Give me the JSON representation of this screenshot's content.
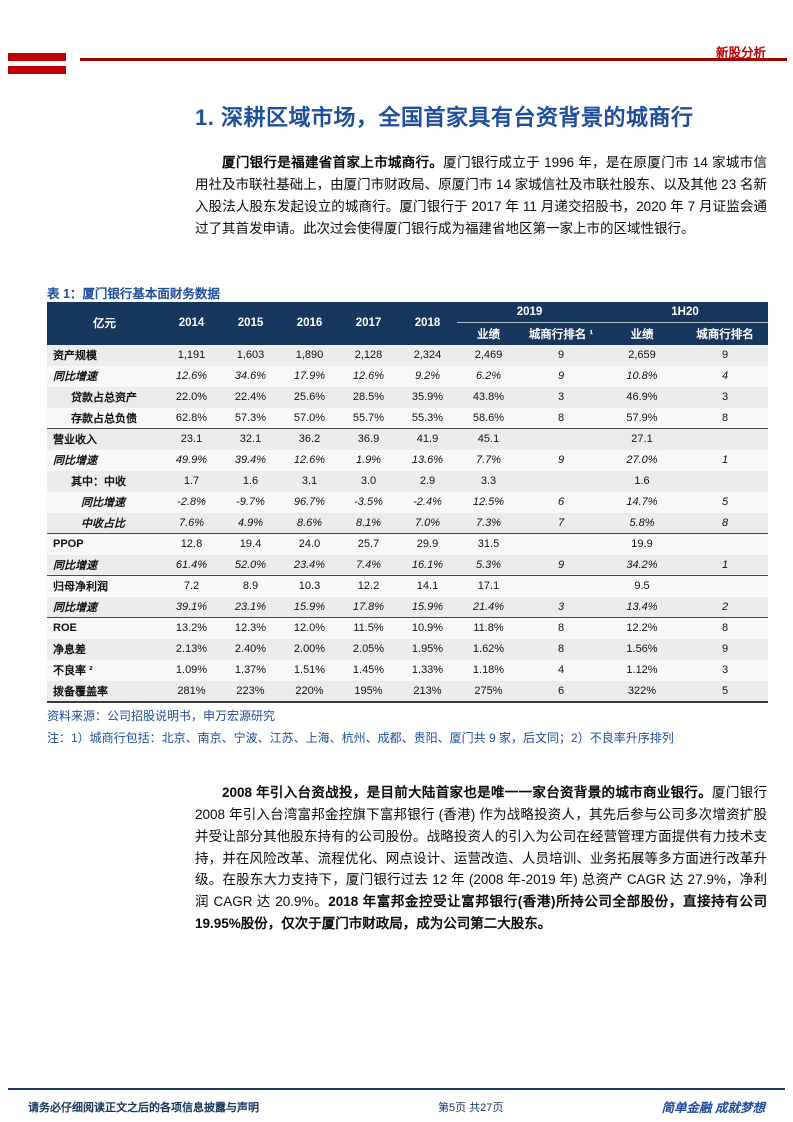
{
  "colors": {
    "accent_red": "#C00000",
    "brand_blue": "#1F4E9C",
    "table_header_bg": "#17375E",
    "footer_navy": "#1F3864"
  },
  "header": {
    "category": "新股分析"
  },
  "heading": "1. 深耕区域市场，全国首家具有台资背景的城商行",
  "para1": {
    "bold_lead": "厦门银行是福建省首家上市城商行。",
    "text": "厦门银行成立于 1996 年，是在原厦门市 14 家城市信用社及市联社基础上，由厦门市财政局、原厦门市 14 家城信社及市联社股东、以及其他 23 名新入股法人股东发起设立的城商行。厦门银行于 2017 年 11 月递交招股书，2020 年 7 月证监会通过了其首发申请。此次过会使得厦门银行成为福建省地区第一家上市的区域性银行。"
  },
  "table": {
    "title": "表 1：厦门银行基本面财务数据",
    "unit_header": "亿元",
    "year_headers": [
      "2014",
      "2015",
      "2016",
      "2017",
      "2018"
    ],
    "group_headers": [
      "2019",
      "1H20"
    ],
    "sub_headers": [
      "业绩",
      "城商行排名 ¹",
      "业绩",
      "城商行排名"
    ],
    "rows": [
      {
        "label": "资产规模",
        "indent": 0,
        "italic": false,
        "group_end": false,
        "values": [
          "1,191",
          "1,603",
          "1,890",
          "2,128",
          "2,324",
          "2,469",
          "9",
          "2,659",
          "9"
        ]
      },
      {
        "label": "同比增速",
        "indent": 0,
        "italic": true,
        "group_end": false,
        "values": [
          "12.6%",
          "34.6%",
          "17.9%",
          "12.6%",
          "9.2%",
          "6.2%",
          "9",
          "10.8%",
          "4"
        ]
      },
      {
        "label": "贷款占总资产",
        "indent": 1,
        "italic": false,
        "group_end": false,
        "values": [
          "22.0%",
          "22.4%",
          "25.6%",
          "28.5%",
          "35.9%",
          "43.8%",
          "3",
          "46.9%",
          "3"
        ]
      },
      {
        "label": "存款占总负债",
        "indent": 1,
        "italic": false,
        "group_end": true,
        "values": [
          "62.8%",
          "57.3%",
          "57.0%",
          "55.7%",
          "55.3%",
          "58.6%",
          "8",
          "57.9%",
          "8"
        ]
      },
      {
        "label": "营业收入",
        "indent": 0,
        "italic": false,
        "group_end": false,
        "values": [
          "23.1",
          "32.1",
          "36.2",
          "36.9",
          "41.9",
          "45.1",
          "",
          "27.1",
          ""
        ]
      },
      {
        "label": "同比增速",
        "indent": 0,
        "italic": true,
        "group_end": false,
        "values": [
          "49.9%",
          "39.4%",
          "12.6%",
          "1.9%",
          "13.6%",
          "7.7%",
          "9",
          "27.0%",
          "1"
        ]
      },
      {
        "label": "其中：中收",
        "indent": 1,
        "italic": false,
        "group_end": false,
        "values": [
          "1.7",
          "1.6",
          "3.1",
          "3.0",
          "2.9",
          "3.3",
          "",
          "1.6",
          ""
        ]
      },
      {
        "label": "同比增速",
        "indent": 2,
        "italic": true,
        "group_end": false,
        "values": [
          "-2.8%",
          "-9.7%",
          "96.7%",
          "-3.5%",
          "-2.4%",
          "12.5%",
          "6",
          "14.7%",
          "5"
        ]
      },
      {
        "label": "中收占比",
        "indent": 2,
        "italic": true,
        "group_end": true,
        "values": [
          "7.6%",
          "4.9%",
          "8.6%",
          "8.1%",
          "7.0%",
          "7.3%",
          "7",
          "5.8%",
          "8"
        ]
      },
      {
        "label": "PPOP",
        "indent": 0,
        "italic": false,
        "group_end": false,
        "values": [
          "12.8",
          "19.4",
          "24.0",
          "25.7",
          "29.9",
          "31.5",
          "",
          "19.9",
          ""
        ]
      },
      {
        "label": "同比增速",
        "indent": 0,
        "italic": true,
        "group_end": true,
        "values": [
          "61.4%",
          "52.0%",
          "23.4%",
          "7.4%",
          "16.1%",
          "5.3%",
          "9",
          "34.2%",
          "1"
        ]
      },
      {
        "label": "归母净利润",
        "indent": 0,
        "italic": false,
        "group_end": false,
        "values": [
          "7.2",
          "8.9",
          "10.3",
          "12.2",
          "14.1",
          "17.1",
          "",
          "9.5",
          ""
        ]
      },
      {
        "label": "同比增速",
        "indent": 0,
        "italic": true,
        "group_end": true,
        "values": [
          "39.1%",
          "23.1%",
          "15.9%",
          "17.8%",
          "15.9%",
          "21.4%",
          "3",
          "13.4%",
          "2"
        ]
      },
      {
        "label": "ROE",
        "indent": 0,
        "italic": false,
        "group_end": false,
        "values": [
          "13.2%",
          "12.3%",
          "12.0%",
          "11.5%",
          "10.9%",
          "11.8%",
          "8",
          "12.2%",
          "8"
        ]
      },
      {
        "label": "净息差",
        "indent": 0,
        "italic": false,
        "group_end": false,
        "values": [
          "2.13%",
          "2.40%",
          "2.00%",
          "2.05%",
          "1.95%",
          "1.62%",
          "8",
          "1.56%",
          "9"
        ]
      },
      {
        "label": "不良率 ²",
        "indent": 0,
        "italic": false,
        "group_end": false,
        "values": [
          "1.09%",
          "1.37%",
          "1.51%",
          "1.45%",
          "1.33%",
          "1.18%",
          "4",
          "1.12%",
          "3"
        ]
      },
      {
        "label": "拨备覆盖率",
        "indent": 0,
        "italic": false,
        "group_end": false,
        "values": [
          "281%",
          "223%",
          "220%",
          "195%",
          "213%",
          "275%",
          "6",
          "322%",
          "5"
        ]
      }
    ],
    "source": "资料来源：公司招股说明书，申万宏源研究",
    "note": "注：1）城商行包括：北京、南京、宁波、江苏、上海、杭州、成都、贵阳、厦门共 9 家，后文同；2）不良率升序排列"
  },
  "para2": {
    "bold_lead": "2008 年引入台资战投，是目前大陆首家也是唯一一家台资背景的城市商业银行。",
    "text": "厦门银行 2008 年引入台湾富邦金控旗下富邦银行 (香港) 作为战略投资人，其先后参与公司多次增资扩股并受让部分其他股东持有的公司股份。战略投资人的引入为公司在经营管理方面提供有力技术支持，并在风险改革、流程优化、网点设计、运营改造、人员培训、业务拓展等多方面进行改革升级。在股东大力支持下，厦门银行过去 12 年 (2008 年-2019 年) 总资产 CAGR 达 27.9%，净利润 CAGR 达 20.9%。",
    "bold_tail": "2018 年富邦金控受让富邦银行(香港)所持公司全部股份，直接持有公司 19.95%股份，仅次于厦门市财政局，成为公司第二大股东。"
  },
  "footer": {
    "disclaimer": "请务必仔细阅读正文之后的各项信息披露与声明",
    "page_number": "第5页 共27页",
    "slogan": "简单金融 成就梦想"
  }
}
